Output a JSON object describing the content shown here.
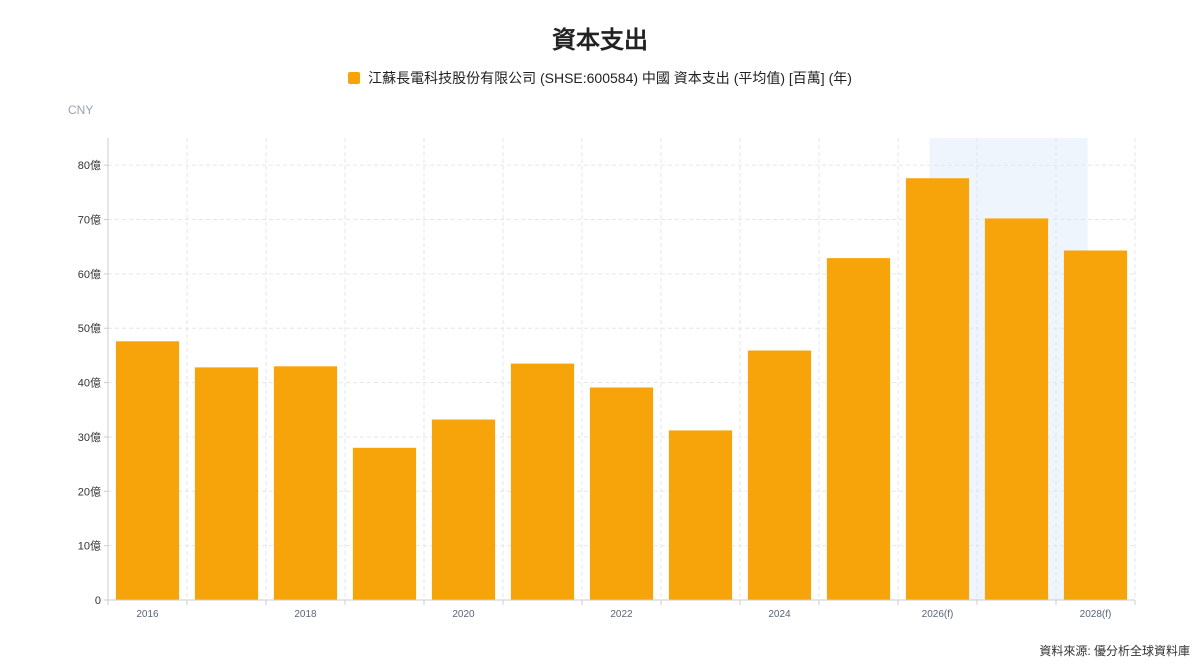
{
  "chart_data": {
    "type": "bar",
    "title": "資本支出",
    "unit": "CNY",
    "series": [
      {
        "name": "江蘇長電科技股份有限公司 (SHSE:600584) 中國 資本支出 (平均值) [百萬] (年)",
        "values": [
          47.6,
          42.8,
          43.0,
          28.0,
          33.2,
          43.5,
          39.1,
          31.2,
          45.9,
          62.9,
          77.6,
          70.2,
          64.3
        ]
      }
    ],
    "categories": [
      "2016",
      "2017",
      "2018",
      "2019",
      "2020",
      "2021",
      "2022",
      "2023",
      "2024",
      "2025",
      "2026(f)",
      "2027(f)",
      "2028(f)"
    ],
    "x_tick_labels": [
      "2016",
      "2018",
      "2020",
      "2022",
      "2024",
      "2026(f)",
      "2028(f)"
    ],
    "y_ticks": [
      "0",
      "10億",
      "20億",
      "30億",
      "40億",
      "50億",
      "60億",
      "70億",
      "80億"
    ],
    "ylim": [
      0,
      85
    ],
    "y_tick_unit": "億",
    "forecast_shading": [
      "2026(f)",
      "2027(f)"
    ],
    "grid": true,
    "legend_position": "top"
  },
  "colors": {
    "bar": "#f7a30a",
    "grid": "#e3e6eb",
    "axis": "#c9ccd1",
    "forecast_band": "#eef5fc"
  },
  "source_text": "資料來源: 優分析全球資料庫"
}
